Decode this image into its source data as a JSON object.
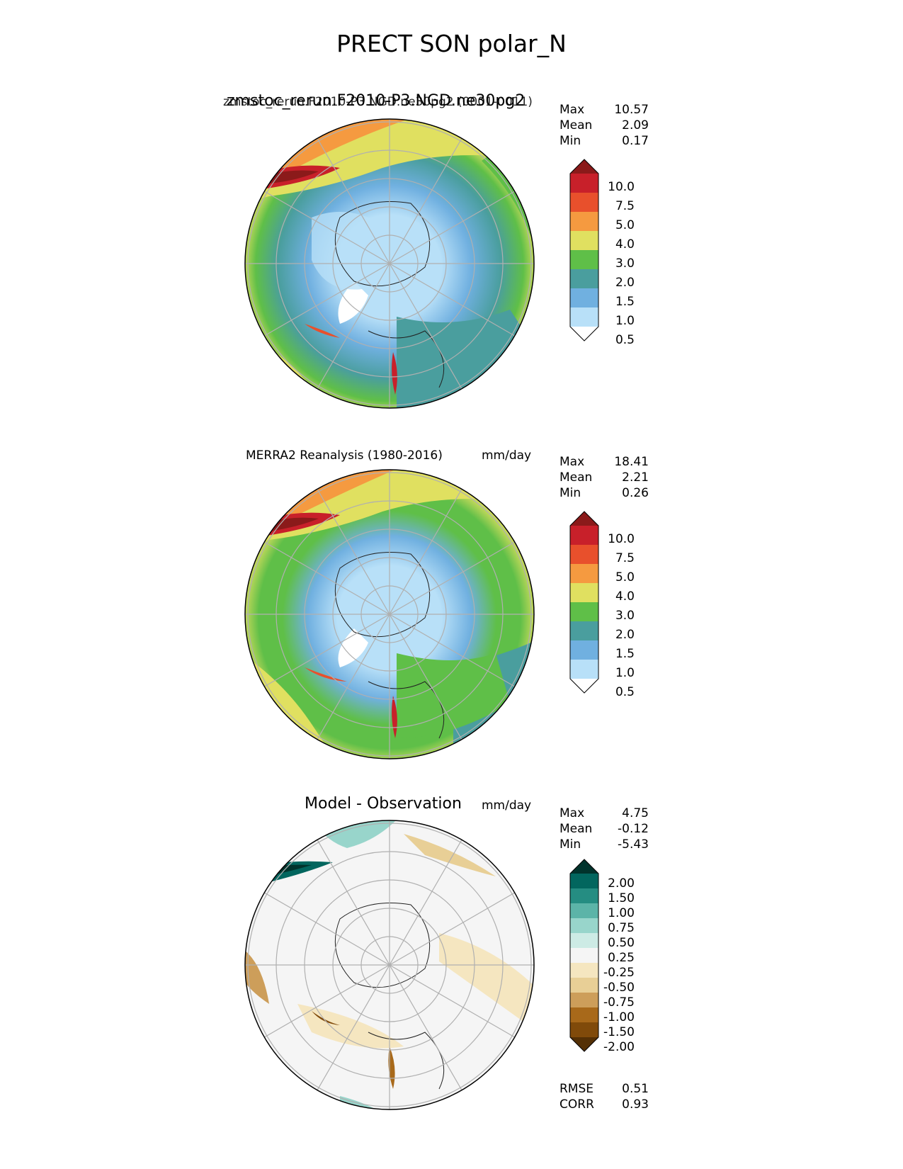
{
  "suptitle": "PRECT SON polar_N",
  "chart_data": [
    {
      "type": "heatmap",
      "projection": "north-polar-stereographic",
      "title_main": "zmstoc_rerun.F2010-P3.NGD.ne30pg2",
      "title_overlap": "zmstoc_rerun.F2010-P3.NGD.ne30pg2 (0001-0011)",
      "units": "mm/day",
      "stats": [
        {
          "label": "Max",
          "value": "10.57"
        },
        {
          "label": "Mean",
          "value": "2.09"
        },
        {
          "label": "Min",
          "value": "0.17"
        }
      ],
      "colorbar": {
        "levels": [
          "10.0",
          "7.5",
          "5.0",
          "4.0",
          "3.0",
          "2.0",
          "1.5",
          "1.0",
          "0.5"
        ],
        "colors": [
          "#8b1a1a",
          "#c8202a",
          "#e8502c",
          "#f59a40",
          "#e0e060",
          "#5fbf48",
          "#4a9e9e",
          "#70b0e0",
          "#b8e0f8",
          "#ffffff"
        ]
      }
    },
    {
      "type": "heatmap",
      "projection": "north-polar-stereographic",
      "title_main": "MERRA2 Reanalysis (1980-2016)",
      "units": "mm/day",
      "stats": [
        {
          "label": "Max",
          "value": "18.41"
        },
        {
          "label": "Mean",
          "value": "2.21"
        },
        {
          "label": "Min",
          "value": "0.26"
        }
      ],
      "colorbar": {
        "levels": [
          "10.0",
          "7.5",
          "5.0",
          "4.0",
          "3.0",
          "2.0",
          "1.5",
          "1.0",
          "0.5"
        ],
        "colors": [
          "#8b1a1a",
          "#c8202a",
          "#e8502c",
          "#f59a40",
          "#e0e060",
          "#5fbf48",
          "#4a9e9e",
          "#70b0e0",
          "#b8e0f8",
          "#ffffff"
        ]
      }
    },
    {
      "type": "heatmap",
      "projection": "north-polar-stereographic",
      "title_main": "Model - Observation",
      "units": "mm/day",
      "stats": [
        {
          "label": "Max",
          "value": "4.75"
        },
        {
          "label": "Mean",
          "value": "-0.12"
        },
        {
          "label": "Min",
          "value": "-5.43"
        }
      ],
      "metrics": [
        {
          "label": "RMSE",
          "value": "0.51"
        },
        {
          "label": "CORR",
          "value": "0.93"
        }
      ],
      "colorbar": {
        "levels": [
          "2.00",
          "1.50",
          "1.00",
          "0.75",
          "0.50",
          "0.25",
          "-0.25",
          "-0.50",
          "-0.75",
          "-1.00",
          "-1.50",
          "-2.00"
        ],
        "colors": [
          "#01332c",
          "#02665e",
          "#258d82",
          "#5cb4a8",
          "#98d5cb",
          "#cdebe5",
          "#f5f5f5",
          "#f5e6c0",
          "#e8cf96",
          "#cd9e5a",
          "#a8691a",
          "#804a0a",
          "#543005"
        ]
      }
    }
  ]
}
